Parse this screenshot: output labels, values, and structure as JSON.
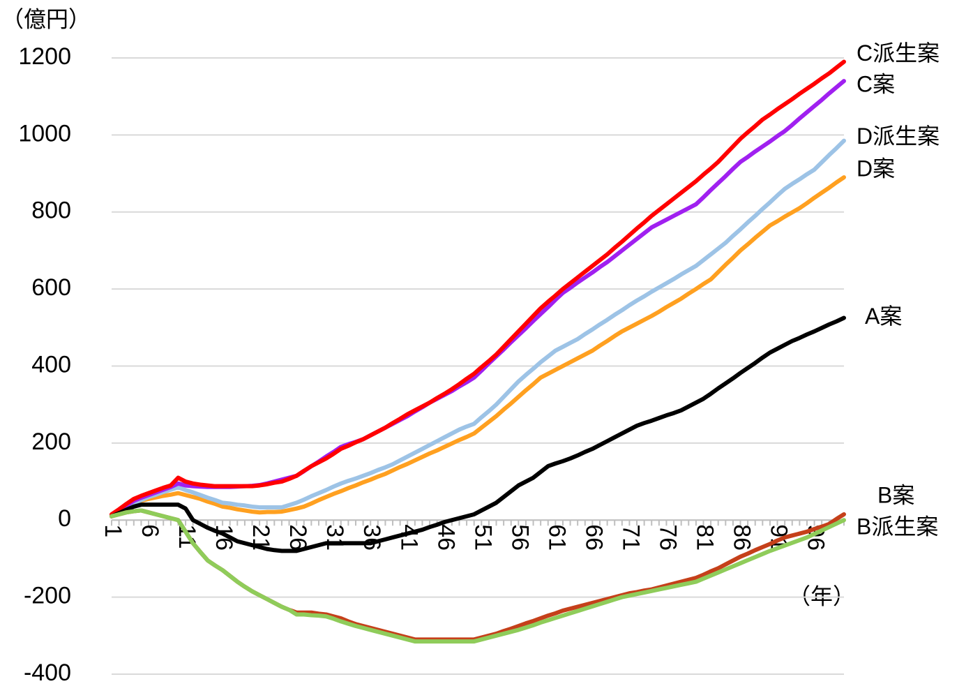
{
  "chart_data": {
    "type": "line",
    "y_unit_label": "（億円）",
    "x_unit_label": "（年）",
    "categories": [
      "1",
      null,
      null,
      null,
      null,
      "6",
      null,
      null,
      null,
      null,
      "11",
      null,
      null,
      null,
      null,
      "16",
      null,
      null,
      null,
      null,
      "21",
      null,
      null,
      null,
      null,
      "26",
      null,
      null,
      null,
      null,
      "31",
      null,
      null,
      null,
      null,
      "36",
      null,
      null,
      null,
      null,
      "41",
      null,
      null,
      null,
      null,
      "46",
      null,
      null,
      null,
      null,
      "51",
      null,
      null,
      null,
      null,
      "56",
      null,
      null,
      null,
      null,
      "61",
      null,
      null,
      null,
      null,
      "66",
      null,
      null,
      null,
      null,
      "71",
      null,
      null,
      null,
      null,
      "76",
      null,
      null,
      null,
      null,
      "81",
      null,
      null,
      null,
      null,
      "86",
      null,
      null,
      null,
      null,
      "91",
      null,
      null,
      null,
      null,
      "96",
      null,
      null,
      null,
      null
    ],
    "ylim": [
      -400,
      1200
    ],
    "yticks": [
      -400,
      -200,
      0,
      200,
      400,
      600,
      800,
      1000,
      1200
    ],
    "grid": true,
    "series": [
      {
        "name": "C派生案",
        "color": "#ff0000",
        "label_color": "#ff0000",
        "values": [
          15,
          28,
          42,
          55,
          63,
          70,
          77,
          84,
          90,
          110,
          100,
          95,
          92,
          90,
          88,
          88,
          88,
          88,
          88,
          88,
          90,
          93,
          97,
          100,
          107,
          115,
          128,
          140,
          150,
          160,
          172,
          185,
          193,
          202,
          210,
          220,
          230,
          240,
          252,
          263,
          275,
          285,
          295,
          305,
          317,
          328,
          340,
          353,
          367,
          380,
          397,
          413,
          430,
          450,
          470,
          490,
          510,
          530,
          550,
          567,
          583,
          600,
          615,
          630,
          645,
          660,
          675,
          690,
          707,
          723,
          740,
          757,
          773,
          790,
          805,
          820,
          835,
          850,
          865,
          880,
          897,
          913,
          930,
          950,
          970,
          990,
          1007,
          1023,
          1040,
          1053,
          1067,
          1080,
          1093,
          1107,
          1120,
          1133,
          1147,
          1160,
          1175,
          1190
        ]
      },
      {
        "name": "C案",
        "color": "#a020f0",
        "label_color": "#8c2ed8",
        "values": [
          12,
          25,
          38,
          50,
          58,
          65,
          72,
          79,
          86,
          95,
          90,
          88,
          87,
          86,
          86,
          86,
          86,
          87,
          88,
          89,
          91,
          95,
          100,
          105,
          110,
          115,
          127,
          140,
          152,
          165,
          177,
          190,
          197,
          203,
          210,
          220,
          230,
          240,
          250,
          260,
          270,
          282,
          293,
          305,
          315,
          325,
          335,
          347,
          358,
          370,
          388,
          407,
          425,
          443,
          462,
          480,
          498,
          517,
          535,
          553,
          572,
          590,
          603,
          617,
          630,
          643,
          657,
          670,
          685,
          700,
          715,
          730,
          745,
          760,
          770,
          780,
          790,
          800,
          810,
          820,
          838,
          857,
          875,
          893,
          912,
          930,
          943,
          957,
          970,
          983,
          997,
          1010,
          1026,
          1043,
          1059,
          1075,
          1091,
          1108,
          1124,
          1140
        ]
      },
      {
        "name": "D派生案",
        "color": "#9dc3e6",
        "label_color": "#c4dcf0",
        "values": [
          10,
          22,
          33,
          45,
          52,
          60,
          66,
          73,
          79,
          85,
          78,
          72,
          65,
          58,
          52,
          45,
          43,
          40,
          38,
          35,
          33,
          33,
          33,
          33,
          39,
          45,
          53,
          62,
          70,
          78,
          87,
          95,
          102,
          108,
          115,
          122,
          130,
          137,
          145,
          155,
          165,
          175,
          185,
          195,
          205,
          215,
          225,
          235,
          243,
          250,
          267,
          283,
          300,
          320,
          340,
          360,
          377,
          393,
          410,
          425,
          440,
          450,
          460,
          470,
          483,
          495,
          508,
          520,
          533,
          545,
          558,
          570,
          581,
          593,
          604,
          615,
          626,
          638,
          649,
          660,
          675,
          690,
          705,
          720,
          738,
          755,
          773,
          790,
          808,
          825,
          843,
          860,
          873,
          885,
          898,
          910,
          929,
          948,
          966,
          985
        ]
      },
      {
        "name": "D案",
        "color": "#ffa020",
        "label_color": "#6aa86a",
        "values": [
          10,
          22,
          33,
          45,
          50,
          55,
          59,
          63,
          66,
          70,
          65,
          60,
          55,
          48,
          42,
          35,
          32,
          28,
          25,
          22,
          20,
          21,
          21,
          22,
          26,
          30,
          35,
          43,
          52,
          60,
          68,
          75,
          83,
          90,
          98,
          105,
          113,
          120,
          129,
          138,
          146,
          155,
          164,
          173,
          181,
          190,
          199,
          208,
          216,
          225,
          240,
          255,
          270,
          287,
          303,
          320,
          337,
          353,
          370,
          380,
          390,
          400,
          410,
          420,
          430,
          440,
          453,
          465,
          478,
          490,
          500,
          510,
          520,
          530,
          541,
          553,
          564,
          575,
          588,
          600,
          613,
          625,
          644,
          663,
          681,
          700,
          716,
          733,
          749,
          765,
          776,
          788,
          799,
          810,
          823,
          837,
          850,
          863,
          877,
          890
        ]
      },
      {
        "name": "A案",
        "color": "#000000",
        "label_color": "#000000",
        "values": [
          10,
          18,
          27,
          35,
          40,
          40,
          40,
          40,
          40,
          40,
          30,
          0,
          -10,
          -20,
          -28,
          -35,
          -45,
          -55,
          -60,
          -65,
          -70,
          -75,
          -78,
          -80,
          -80,
          -80,
          -75,
          -70,
          -65,
          -60,
          -60,
          -60,
          -60,
          -60,
          -60,
          -60,
          -55,
          -50,
          -45,
          -40,
          -35,
          -30,
          -25,
          -18,
          -12,
          -5,
          0,
          5,
          10,
          15,
          25,
          35,
          45,
          60,
          75,
          90,
          100,
          110,
          125,
          140,
          147,
          153,
          160,
          168,
          177,
          185,
          195,
          205,
          215,
          225,
          235,
          245,
          252,
          258,
          265,
          272,
          278,
          285,
          295,
          305,
          315,
          328,
          342,
          355,
          368,
          382,
          395,
          408,
          422,
          435,
          445,
          455,
          465,
          473,
          482,
          490,
          499,
          508,
          516,
          525
        ]
      },
      {
        "name": "B案",
        "color": "#c5401a",
        "label_color": "#3f7a45",
        "values": [
          10,
          15,
          20,
          23,
          25,
          20,
          15,
          10,
          5,
          0,
          -30,
          -60,
          -83,
          -105,
          -118,
          -130,
          -145,
          -160,
          -173,
          -185,
          -195,
          -205,
          -215,
          -225,
          -233,
          -240,
          -240,
          -240,
          -243,
          -245,
          -250,
          -255,
          -263,
          -270,
          -275,
          -280,
          -285,
          -290,
          -295,
          -300,
          -305,
          -310,
          -310,
          -310,
          -310,
          -310,
          -310,
          -310,
          -310,
          -310,
          -305,
          -300,
          -295,
          -288,
          -282,
          -275,
          -268,
          -262,
          -255,
          -248,
          -242,
          -235,
          -230,
          -225,
          -220,
          -215,
          -210,
          -205,
          -200,
          -195,
          -190,
          -187,
          -183,
          -180,
          -175,
          -170,
          -165,
          -160,
          -155,
          -150,
          -142,
          -133,
          -125,
          -115,
          -105,
          -95,
          -87,
          -78,
          -70,
          -62,
          -53,
          -45,
          -40,
          -35,
          -30,
          -23,
          -17,
          -10,
          3,
          15
        ]
      },
      {
        "name": "B派生案",
        "color": "#8fcc5a",
        "label_color": "#8cc850",
        "values": [
          10,
          15,
          20,
          23,
          25,
          20,
          15,
          10,
          5,
          0,
          -30,
          -60,
          -83,
          -105,
          -118,
          -130,
          -145,
          -160,
          -173,
          -185,
          -195,
          -205,
          -215,
          -225,
          -233,
          -245,
          -245,
          -247,
          -248,
          -250,
          -256,
          -263,
          -269,
          -275,
          -280,
          -285,
          -290,
          -295,
          -300,
          -305,
          -310,
          -315,
          -315,
          -315,
          -315,
          -315,
          -315,
          -315,
          -315,
          -315,
          -310,
          -305,
          -300,
          -295,
          -290,
          -285,
          -279,
          -273,
          -266,
          -260,
          -254,
          -248,
          -242,
          -236,
          -230,
          -224,
          -218,
          -212,
          -206,
          -200,
          -196,
          -192,
          -188,
          -184,
          -180,
          -176,
          -172,
          -168,
          -164,
          -160,
          -152,
          -144,
          -136,
          -128,
          -120,
          -112,
          -104,
          -96,
          -88,
          -80,
          -73,
          -66,
          -59,
          -52,
          -45,
          -36,
          -27,
          -18,
          -9,
          0
        ]
      }
    ]
  }
}
